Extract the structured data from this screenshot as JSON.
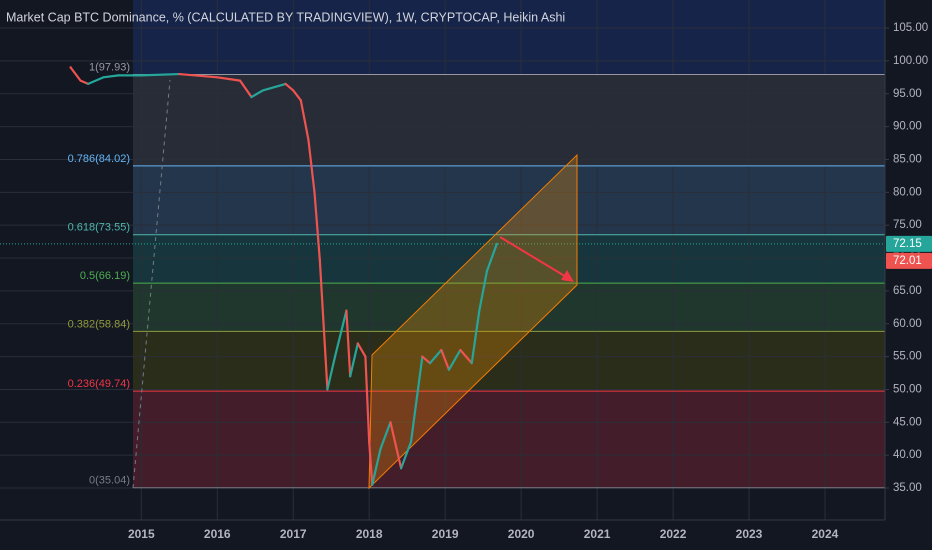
{
  "chart_data": {
    "type": "line",
    "title": "Market Cap BTC Dominance, % (CALCULATED BY TRADINGVIEW), 1W, CRYPTOCAP, Heikin Ashi",
    "x": [
      2014.07,
      2014.2,
      2014.3,
      2014.5,
      2014.7,
      2015.0,
      2015.5,
      2016.0,
      2016.3,
      2016.45,
      2016.6,
      2016.9,
      2017.0,
      2017.1,
      2017.2,
      2017.28,
      2017.35,
      2017.45,
      2017.55,
      2017.7,
      2017.75,
      2017.85,
      2017.95,
      2018.0,
      2018.04,
      2018.15,
      2018.28,
      2018.42,
      2018.55,
      2018.7,
      2018.8,
      2018.95,
      2019.05,
      2019.2,
      2019.35,
      2019.45,
      2019.55,
      2019.68
    ],
    "values": [
      99,
      97,
      96.5,
      97.5,
      97.8,
      97.8,
      98,
      97.5,
      97,
      94.5,
      95.5,
      96.5,
      95.5,
      94,
      88,
      80,
      69.7,
      50,
      55,
      62,
      52,
      57,
      55,
      42,
      35.5,
      41,
      45,
      38,
      42,
      55,
      54,
      56,
      53,
      56,
      54,
      62,
      68,
      72.15
    ],
    "up_color": "#26a69a",
    "down_color": "#ef5350",
    "xlim": [
      2013.14,
      2024.79
    ],
    "xticks": [
      2015,
      2016,
      2017,
      2018,
      2019,
      2020,
      2021,
      2022,
      2023,
      2024
    ],
    "ylim": [
      30.13,
      109.27
    ],
    "yticks": [
      {
        "value": 35,
        "label": "35.00"
      },
      {
        "value": 40,
        "label": "40.00"
      },
      {
        "value": 45,
        "label": "45.00"
      },
      {
        "value": 50,
        "label": "50.00"
      },
      {
        "value": 55,
        "label": "55.00"
      },
      {
        "value": 60,
        "label": "60.00"
      },
      {
        "value": 65,
        "label": "65.00"
      },
      {
        "value": 70,
        "label": "70.00"
      },
      {
        "value": 75,
        "label": "75.00"
      },
      {
        "value": 80,
        "label": "80.00"
      },
      {
        "value": 85,
        "label": "85.00"
      },
      {
        "value": 90,
        "label": "90.00"
      },
      {
        "value": 95,
        "label": "95.00"
      },
      {
        "value": 100,
        "label": "100.00"
      },
      {
        "value": 105,
        "label": "105.00"
      }
    ],
    "grid": true,
    "fib_levels": [
      {
        "value": 97.93,
        "label": "1(97.93)",
        "color": "#9598a1",
        "fill": "rgba(120,123,134,0.22)"
      },
      {
        "value": 84.02,
        "label": "0.786(84.02)",
        "color": "#64b5f6",
        "fill": "rgba(100,181,246,0.20)"
      },
      {
        "value": 73.55,
        "label": "0.618(73.55)",
        "color": "#4db6ac",
        "fill": "rgba(38,166,154,0.22)"
      },
      {
        "value": 66.19,
        "label": "0.5(66.19)",
        "color": "#4caf50",
        "fill": "rgba(76,175,80,0.22)"
      },
      {
        "value": 58.84,
        "label": "0.382(58.84)",
        "color": "#8f9a3a",
        "fill": "rgba(128,128,0,0.22)"
      },
      {
        "value": 49.74,
        "label": "0.236(49.74)",
        "color": "#f23645",
        "fill": "rgba(242,54,69,0.22)"
      },
      {
        "value": 35.04,
        "label": "0(35.04)",
        "color": "#787b86",
        "fill": "rgba(0,0,0,0)"
      }
    ],
    "top_fill": "rgba(41,98,255,0.18)",
    "price_tags": [
      {
        "value": 72.15,
        "color": "#26a69a"
      },
      {
        "value": 72.01,
        "color": "#ef5350"
      }
    ]
  }
}
